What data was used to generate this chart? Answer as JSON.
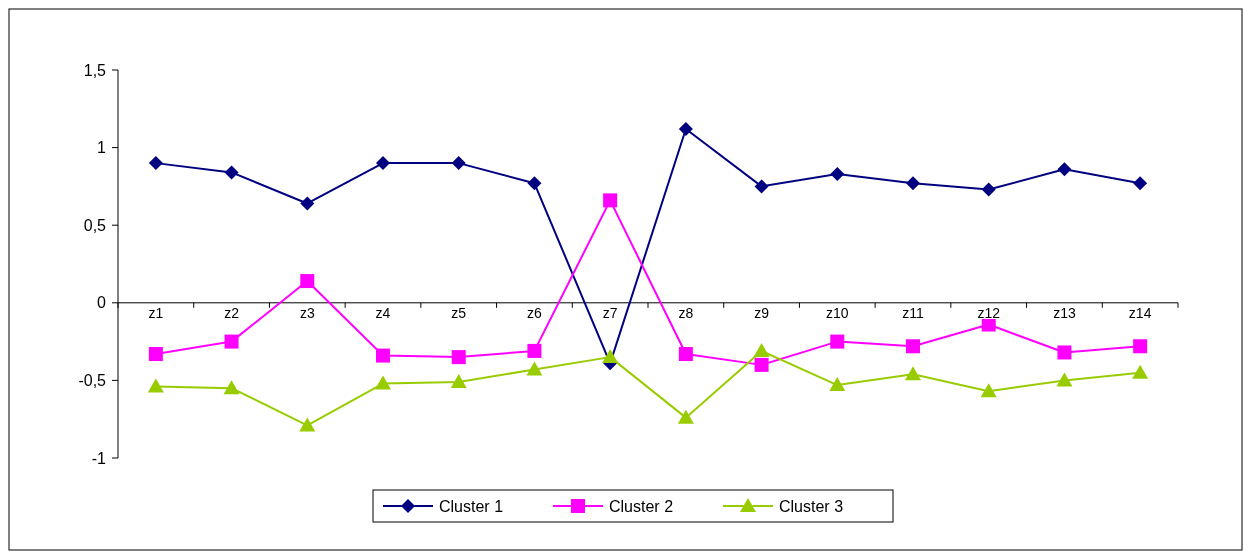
{
  "chart_data": {
    "type": "line",
    "categories": [
      "z1",
      "z2",
      "z3",
      "z4",
      "z5",
      "z6",
      "z7",
      "z8",
      "z9",
      "z10",
      "z11",
      "z12",
      "z13",
      "z14"
    ],
    "series": [
      {
        "name": "Cluster 1",
        "color": "#000080",
        "marker": "diamond",
        "values": [
          0.9,
          0.84,
          0.64,
          0.9,
          0.9,
          0.77,
          -0.39,
          1.12,
          0.75,
          0.83,
          0.77,
          0.73,
          0.86,
          0.77
        ]
      },
      {
        "name": "Cluster 2",
        "color": "#ff00ff",
        "marker": "square",
        "values": [
          -0.33,
          -0.25,
          0.14,
          -0.34,
          -0.35,
          -0.31,
          0.66,
          -0.33,
          -0.4,
          -0.25,
          -0.28,
          -0.14,
          -0.32,
          -0.28
        ]
      },
      {
        "name": "Cluster 3",
        "color": "#99cc00",
        "marker": "triangle",
        "values": [
          -0.54,
          -0.55,
          -0.79,
          -0.52,
          -0.51,
          -0.43,
          -0.35,
          -0.74,
          -0.31,
          -0.53,
          -0.46,
          -0.57,
          -0.5,
          -0.45
        ]
      }
    ],
    "ylim": [
      -1,
      1.5
    ],
    "yticks": [
      {
        "value": -1,
        "label": "-1"
      },
      {
        "value": -0.5,
        "label": "-0,5"
      },
      {
        "value": 0,
        "label": "0"
      },
      {
        "value": 0.5,
        "label": "0,5"
      },
      {
        "value": 1,
        "label": "1"
      },
      {
        "value": 1.5,
        "label": "1,5"
      }
    ],
    "legend": "bottom",
    "grid": false
  }
}
